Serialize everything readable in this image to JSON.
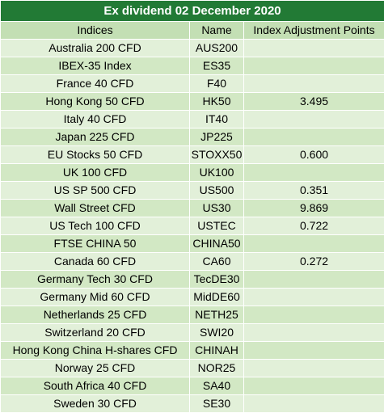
{
  "title": "Ex dividend 02 December  2020",
  "columns": [
    "Indices",
    "Name",
    "Index Adjustment Points"
  ],
  "rows": [
    {
      "index": "Australia 200 CFD",
      "name": "AUS200",
      "points": ""
    },
    {
      "index": "IBEX-35 Index",
      "name": "ES35",
      "points": ""
    },
    {
      "index": "France 40 CFD",
      "name": "F40",
      "points": ""
    },
    {
      "index": "Hong Kong 50 CFD",
      "name": "HK50",
      "points": "3.495"
    },
    {
      "index": "Italy 40 CFD",
      "name": "IT40",
      "points": ""
    },
    {
      "index": "Japan 225 CFD",
      "name": "JP225",
      "points": ""
    },
    {
      "index": "EU Stocks 50 CFD",
      "name": "STOXX50",
      "points": "0.600"
    },
    {
      "index": "UK 100 CFD",
      "name": "UK100",
      "points": ""
    },
    {
      "index": "US SP 500 CFD",
      "name": "US500",
      "points": "0.351"
    },
    {
      "index": "Wall Street CFD",
      "name": "US30",
      "points": "9.869"
    },
    {
      "index": "US Tech 100 CFD",
      "name": "USTEC",
      "points": "0.722"
    },
    {
      "index": "FTSE CHINA 50",
      "name": "CHINA50",
      "points": ""
    },
    {
      "index": "Canada 60 CFD",
      "name": "CA60",
      "points": "0.272"
    },
    {
      "index": "Germany Tech 30 CFD",
      "name": "TecDE30",
      "points": ""
    },
    {
      "index": "Germany Mid 60 CFD",
      "name": "MidDE60",
      "points": ""
    },
    {
      "index": "Netherlands 25 CFD",
      "name": "NETH25",
      "points": ""
    },
    {
      "index": "Switzerland 20 CFD",
      "name": "SWI20",
      "points": ""
    },
    {
      "index": "Hong Kong China H-shares CFD",
      "name": "CHINAH",
      "points": ""
    },
    {
      "index": "Norway 25 CFD",
      "name": "NOR25",
      "points": ""
    },
    {
      "index": "South Africa 40 CFD",
      "name": "SA40",
      "points": ""
    },
    {
      "index": "Sweden 30 CFD",
      "name": "SE30",
      "points": ""
    }
  ],
  "colors": {
    "title_bg": "#227a35",
    "header_bg": "#c3dfb4",
    "row_light": "#e2f0d9",
    "row_dark": "#d2e8c4"
  }
}
